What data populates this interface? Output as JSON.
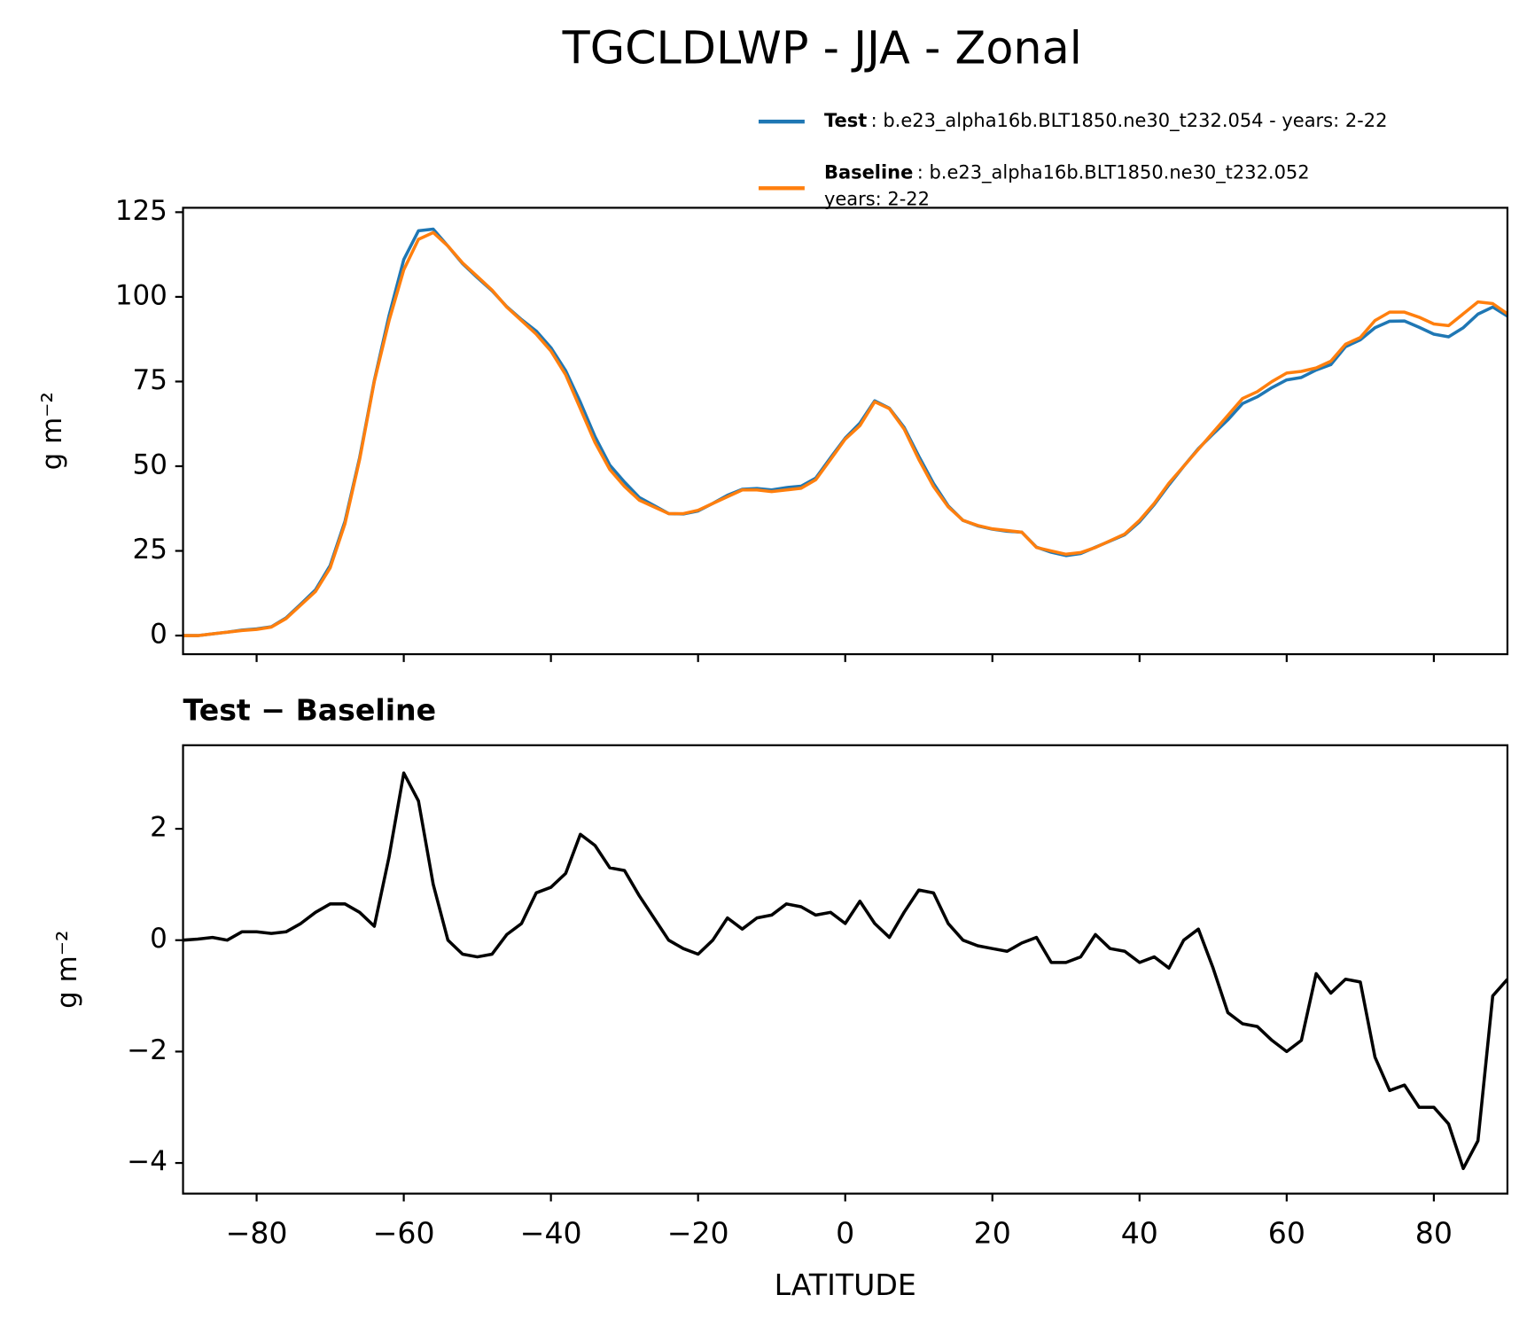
{
  "chart_data": [
    {
      "type": "line",
      "title": "TGCLDLWP - JJA - Zonal",
      "ylabel": "g m⁻²",
      "x": [
        -90,
        -88,
        -86,
        -84,
        -82,
        -80,
        -78,
        -76,
        -74,
        -72,
        -70,
        -68,
        -66,
        -64,
        -62,
        -60,
        -58,
        -56,
        -54,
        -52,
        -50,
        -48,
        -46,
        -44,
        -42,
        -40,
        -38,
        -36,
        -34,
        -32,
        -30,
        -28,
        -26,
        -24,
        -22,
        -20,
        -18,
        -16,
        -14,
        -12,
        -10,
        -8,
        -6,
        -4,
        -2,
        0,
        2,
        4,
        6,
        8,
        10,
        12,
        14,
        16,
        18,
        20,
        22,
        24,
        26,
        28,
        30,
        32,
        34,
        36,
        38,
        40,
        42,
        44,
        46,
        48,
        50,
        52,
        54,
        56,
        58,
        60,
        62,
        64,
        66,
        68,
        70,
        72,
        74,
        76,
        78,
        80,
        82,
        84,
        86,
        88,
        90
      ],
      "series": [
        {
          "name": "Test",
          "description": [
            ": b.e23_alpha16b.BLT1850.ne30_t232.054 - years: 2-22"
          ],
          "color": "#1f77b4",
          "values": [
            0,
            0,
            0.5,
            1,
            1.6,
            2,
            2.6,
            5.2,
            9.3,
            13.5,
            20.7,
            33.7,
            52.5,
            75.3,
            94.5,
            111,
            119.5,
            120,
            115,
            109.8,
            105.7,
            101.8,
            97.1,
            93.3,
            89.9,
            85,
            78.2,
            68.9,
            58.7,
            50.3,
            45.3,
            40.8,
            38.4,
            36,
            35.9,
            36.8,
            39,
            41.4,
            43.2,
            43.4,
            43,
            43.7,
            44.1,
            46.5,
            52.5,
            58.3,
            62.7,
            69.3,
            67.1,
            61.5,
            52.9,
            44.9,
            38.3,
            34,
            32.4,
            31.4,
            30.8,
            30.5,
            26.1,
            24.6,
            23.6,
            24.2,
            26.1,
            27.9,
            29.8,
            33.6,
            38.7,
            44.5,
            50,
            55.2,
            59.5,
            63.7,
            68.5,
            70.5,
            73.2,
            75.5,
            76.2,
            78.4,
            80,
            85.3,
            87.3,
            90.9,
            92.8,
            92.9,
            91,
            89,
            88.2,
            90.9,
            94.9,
            97,
            94.3
          ]
        },
        {
          "name": "Baseline",
          "description": [
            ": b.e23_alpha16b.BLT1850.ne30_t232.052",
            "years: 2-22"
          ],
          "color": "#ff7f0e",
          "values": [
            0,
            0,
            0.5,
            1,
            1.5,
            1.8,
            2.5,
            5,
            9,
            13,
            20,
            33,
            52,
            75,
            93,
            108,
            117,
            119,
            115,
            110,
            106,
            102,
            97,
            93,
            89,
            84,
            77,
            67,
            57,
            49,
            44,
            40,
            38,
            36,
            36,
            37,
            39,
            41,
            43,
            43,
            42.5,
            43,
            43.5,
            46,
            52,
            58,
            62,
            69,
            67,
            61,
            52,
            44,
            38,
            34,
            32.5,
            31.5,
            31,
            30.5,
            26,
            25,
            24,
            24.5,
            26,
            28,
            30,
            34,
            39,
            45,
            50,
            55,
            60,
            65,
            70,
            72,
            75,
            77.5,
            78,
            79,
            81,
            86,
            88,
            93,
            95.5,
            95.5,
            94,
            92,
            91.5,
            95,
            98.5,
            98,
            95
          ]
        }
      ],
      "xlim": [
        -90,
        90
      ],
      "ylim": [
        -5.5,
        126.3
      ],
      "yticks": [
        0,
        25,
        50,
        75,
        100,
        125
      ]
    },
    {
      "type": "line",
      "title": "Test − Baseline",
      "ylabel": "g m⁻²",
      "xlabel": "LATITUDE",
      "x": [
        -90,
        -88,
        -86,
        -84,
        -82,
        -80,
        -78,
        -76,
        -74,
        -72,
        -70,
        -68,
        -66,
        -64,
        -62,
        -60,
        -58,
        -56,
        -54,
        -52,
        -50,
        -48,
        -46,
        -44,
        -42,
        -40,
        -38,
        -36,
        -34,
        -32,
        -30,
        -28,
        -26,
        -24,
        -22,
        -20,
        -18,
        -16,
        -14,
        -12,
        -10,
        -8,
        -6,
        -4,
        -2,
        0,
        2,
        4,
        6,
        8,
        10,
        12,
        14,
        16,
        18,
        20,
        22,
        24,
        26,
        28,
        30,
        32,
        34,
        36,
        38,
        40,
        42,
        44,
        46,
        48,
        50,
        52,
        54,
        56,
        58,
        60,
        62,
        64,
        66,
        68,
        70,
        72,
        74,
        76,
        78,
        80,
        82,
        84,
        86,
        88,
        90
      ],
      "color": "#000000",
      "values": [
        0,
        0.02,
        0.05,
        0,
        0.15,
        0.15,
        0.12,
        0.15,
        0.3,
        0.5,
        0.65,
        0.65,
        0.5,
        0.25,
        1.5,
        3,
        2.5,
        1,
        0,
        -0.25,
        -0.3,
        -0.25,
        0.1,
        0.3,
        0.85,
        0.95,
        1.2,
        1.9,
        1.7,
        1.3,
        1.25,
        0.8,
        0.4,
        0,
        -0.15,
        -0.25,
        0,
        0.4,
        0.2,
        0.4,
        0.45,
        0.65,
        0.6,
        0.45,
        0.5,
        0.3,
        0.7,
        0.3,
        0.05,
        0.5,
        0.9,
        0.85,
        0.3,
        0,
        -0.1,
        -0.15,
        -0.2,
        -0.05,
        0.05,
        -0.4,
        -0.4,
        -0.3,
        0.1,
        -0.15,
        -0.2,
        -0.4,
        -0.3,
        -0.5,
        0,
        0.2,
        -0.5,
        -1.3,
        -1.5,
        -1.55,
        -1.8,
        -2,
        -1.8,
        -0.6,
        -0.95,
        -0.7,
        -0.75,
        -2.1,
        -2.7,
        -2.6,
        -3,
        -3,
        -3.3,
        -4.1,
        -3.6,
        -1,
        -0.7
      ],
      "xlim": [
        -90,
        90
      ],
      "ylim": [
        -4.55,
        3.5
      ],
      "xticks": [
        {
          "value": -80,
          "label": "−80"
        },
        {
          "value": -60,
          "label": "−60"
        },
        {
          "value": -40,
          "label": "−40"
        },
        {
          "value": -20,
          "label": "−20"
        },
        0,
        20,
        40,
        60,
        80
      ],
      "yticks": [
        {
          "value": -4,
          "label": "−4"
        },
        {
          "value": -2,
          "label": "−2"
        },
        0,
        2
      ]
    }
  ]
}
